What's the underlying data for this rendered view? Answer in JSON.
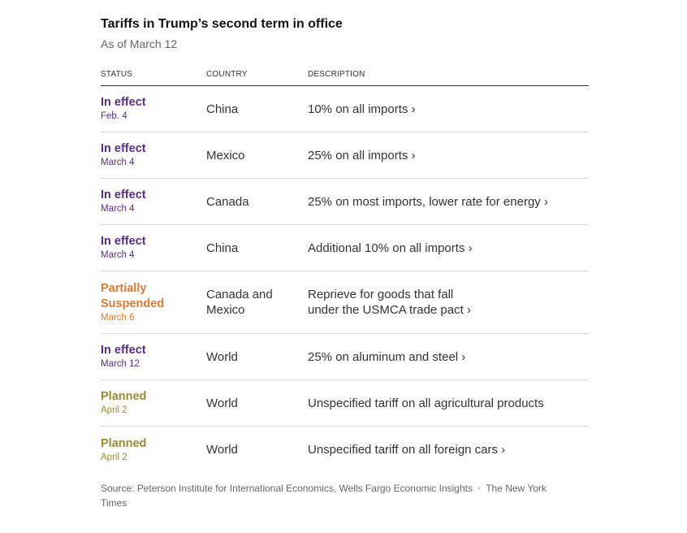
{
  "title": "Tariffs in Trump’s second term in office",
  "subtitle": "As of March 12",
  "columns": {
    "status": "STATUS",
    "country": "COUNTRY",
    "description": "DESCRIPTION"
  },
  "colors": {
    "in_effect": "#5a2d82",
    "partially_suspended": "#db7a36",
    "planned": "#9a8c33"
  },
  "rows": [
    {
      "status": "In effect",
      "date": "Feb. 4",
      "country": "China",
      "description": "10% on all imports ›"
    },
    {
      "status": "In effect",
      "date": "March 4",
      "country": "Mexico",
      "description": "25% on all imports ›"
    },
    {
      "status": "In effect",
      "date": "March 4",
      "country": "Canada",
      "description": "25% on most imports, lower rate for energy ›"
    },
    {
      "status": "In effect",
      "date": "March 4",
      "country": "China",
      "description": "Additional 10% on all imports ›"
    },
    {
      "status_line1": "Partially",
      "status_line2": "Suspended",
      "date": "March 6",
      "country_line1": "Canada and",
      "country_line2": "Mexico",
      "description_line1": "Reprieve for goods that fall",
      "description_line2": "under the USMCA trade pact ›"
    },
    {
      "status": "In effect",
      "date": "March 12",
      "country": "World",
      "description": "25% on aluminum and steel ›"
    },
    {
      "status": "Planned",
      "date": "April 2",
      "country": "World",
      "description": "Unspecified tariff on all agricultural products"
    },
    {
      "status": "Planned",
      "date": "April 2",
      "country": "World",
      "description": "Unspecified tariff on all foreign cars ›"
    }
  ],
  "source": {
    "text": "Source: Peterson Institute for International Economics, Wells Fargo Economic Insights",
    "separator": "•",
    "credit": "The New York Times"
  }
}
